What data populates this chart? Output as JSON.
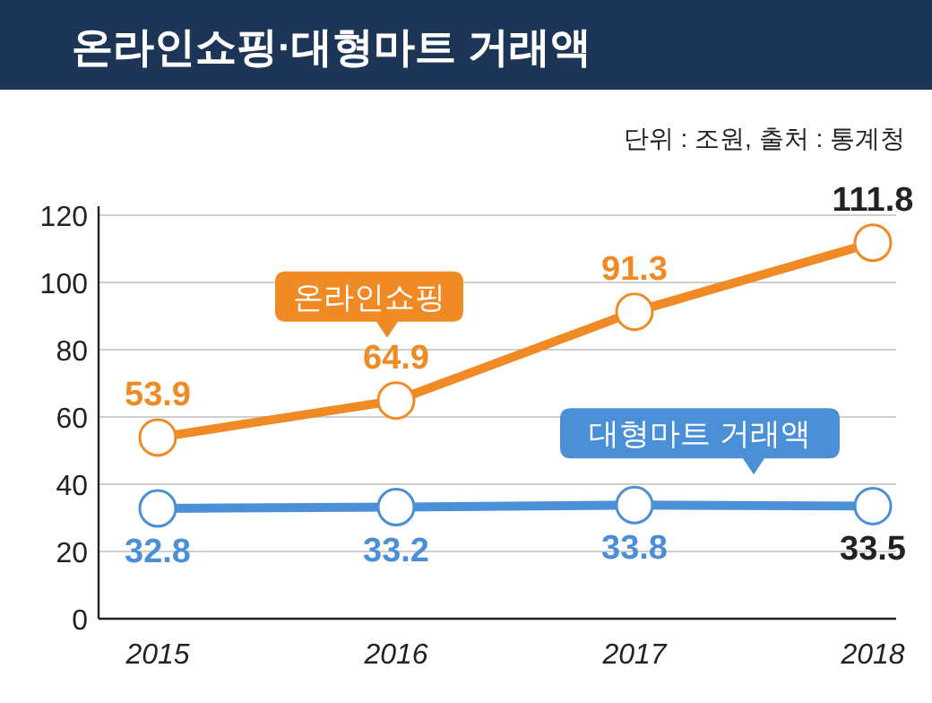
{
  "chart_data": {
    "type": "line",
    "title": "온라인쇼핑·대형마트 거래액",
    "subtitle": "단위 : 조원, 출처 : 통계청",
    "categories": [
      "2015",
      "2016",
      "2017",
      "2018"
    ],
    "series": [
      {
        "name": "온라인쇼핑",
        "color": "#f08a24",
        "values": [
          53.9,
          64.9,
          91.3,
          111.8
        ]
      },
      {
        "name": "대형마트 거래액",
        "color": "#4b8fd6",
        "values": [
          32.8,
          33.2,
          33.8,
          33.5
        ]
      }
    ],
    "ylim": [
      0,
      120
    ],
    "yticks": [
      0,
      20,
      40,
      60,
      80,
      100,
      120
    ],
    "grid": "y",
    "marker": "circle",
    "line_style": "solid",
    "data_labels": true
  }
}
